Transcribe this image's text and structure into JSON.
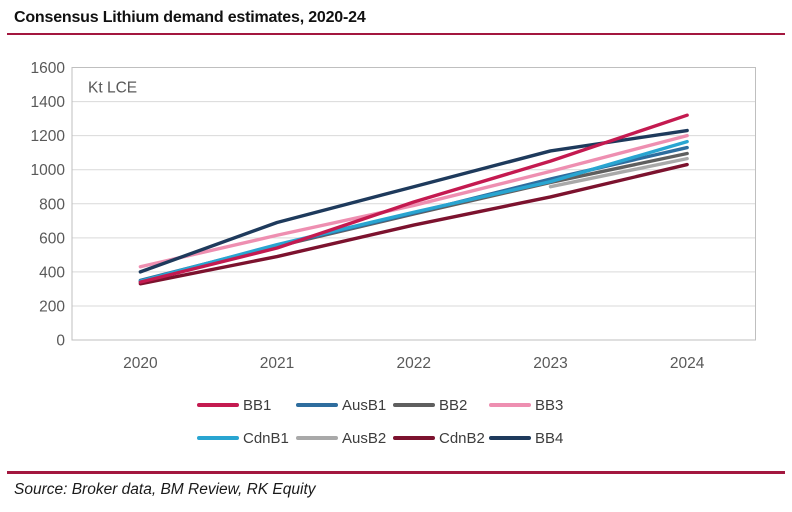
{
  "header": {
    "title": "Consensus Lithium demand estimates, 2020-24"
  },
  "footer": {
    "source": "Source: Broker data, BM Review, RK Equity"
  },
  "colors": {
    "rule": "#a3173f",
    "grid": "#d9d9d9",
    "plot_border": "#bfbfbf",
    "axis_text": "#595959",
    "legend_text": "#3d3d3d"
  },
  "chart_data": {
    "type": "line",
    "title": "Consensus Lithium demand estimates, 2020-24",
    "unit_label": "Kt LCE",
    "categories": [
      "2020",
      "2021",
      "2022",
      "2023",
      "2024"
    ],
    "xlabel": "",
    "ylabel": "Kt LCE",
    "ylim": [
      0,
      1600
    ],
    "yticks": [
      0,
      200,
      400,
      600,
      800,
      1000,
      1200,
      1400,
      1600
    ],
    "grid": "horizontal",
    "legend_position": "bottom",
    "series": [
      {
        "name": "BB1",
        "color": "#c41a50",
        "values": [
          340,
          540,
          810,
          1050,
          1320
        ]
      },
      {
        "name": "AusB1",
        "color": "#2e6d9e",
        "values": [
          350,
          555,
          745,
          945,
          1130
        ]
      },
      {
        "name": "BB2",
        "color": "#5f5f5f",
        "values": [
          340,
          550,
          740,
          925,
          1095
        ]
      },
      {
        "name": "BB3",
        "color": "#ee8fb1",
        "values": [
          430,
          615,
          790,
          990,
          1200
        ]
      },
      {
        "name": "CdnB1",
        "color": "#29a5d1",
        "values": [
          345,
          560,
          750,
          930,
          1165
        ]
      },
      {
        "name": "AusB2",
        "color": "#a9a9a9",
        "values": [
          null,
          null,
          null,
          900,
          1065
        ]
      },
      {
        "name": "CdnB2",
        "color": "#7c122e",
        "values": [
          330,
          490,
          675,
          840,
          1030
        ]
      },
      {
        "name": "BB4",
        "color": "#1e3a5c",
        "values": [
          400,
          690,
          900,
          1110,
          1230
        ]
      }
    ],
    "draw_order": [
      "BB2",
      "AusB1",
      "CdnB1",
      "AusB2",
      "BB3",
      "CdnB2",
      "BB4",
      "BB1"
    ],
    "legend_rows": [
      [
        "BB1",
        "AusB1",
        "BB2",
        "BB3"
      ],
      [
        "CdnB1",
        "AusB2",
        "CdnB2",
        "BB4"
      ]
    ]
  }
}
